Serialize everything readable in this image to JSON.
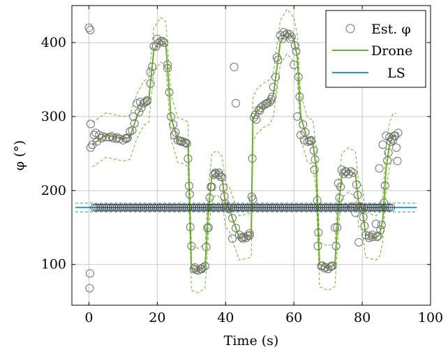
{
  "chart_data": {
    "type": "line",
    "title": "",
    "xlabel": "Time (s)",
    "ylabel": "φ (°)",
    "xlim": [
      -5,
      100
    ],
    "ylim": [
      45,
      450
    ],
    "xticks": [
      0,
      20,
      40,
      60,
      80,
      100
    ],
    "yticks": [
      100,
      200,
      300,
      400
    ],
    "xtick_labels": [
      "0",
      "20",
      "40",
      "60",
      "80",
      "100"
    ],
    "ytick_labels": [
      "100",
      "200",
      "300",
      "400"
    ],
    "grid": true,
    "legend_position": "top-right",
    "colors": {
      "drone": "#6db320",
      "ls": "#1f9ad6",
      "estimate": "#707070"
    },
    "series": [
      {
        "name": "Est. φ",
        "kind": "scatter",
        "x": [
          0,
          0.4,
          0.5,
          0.3,
          0.2,
          0.5,
          1,
          1.5,
          2,
          3,
          4,
          5,
          6,
          7,
          8,
          9,
          10,
          11,
          12,
          13,
          14,
          15,
          16,
          17,
          18,
          19,
          20,
          21,
          22,
          23,
          24,
          25,
          26,
          27,
          28,
          29,
          29.5,
          30,
          31,
          32,
          33,
          34,
          35,
          36,
          37,
          38,
          39,
          40,
          41,
          42,
          42.5,
          43,
          44,
          45,
          46,
          47,
          48,
          49,
          50,
          51,
          52,
          53,
          54,
          55,
          56,
          57,
          58,
          59,
          60,
          61,
          62,
          63,
          64,
          65,
          66,
          67,
          68,
          69,
          70,
          71,
          72,
          73,
          74,
          75,
          76,
          77,
          78,
          79,
          80,
          81,
          82,
          83,
          84,
          85,
          86,
          87,
          88,
          89,
          90,
          90.5,
          90.3
        ],
        "y": [
          420,
          417,
          290,
          88,
          68,
          258,
          262,
          275,
          278,
          275,
          273,
          272,
          272,
          271,
          270,
          270,
          268,
          270,
          280,
          300,
          318,
          320,
          318,
          322,
          360,
          395,
          405,
          402,
          400,
          370,
          300,
          275,
          268,
          266,
          265,
          243,
          195,
          125,
          96,
          92,
          94,
          98,
          150,
          205,
          224,
          224,
          218,
          182,
          175,
          135,
          367,
          318,
          140,
          135,
          136,
          142,
          188,
          296,
          308,
          315,
          318,
          320,
          340,
          380,
          410,
          414,
          412,
          405,
          370,
          300,
          275,
          268,
          266,
          268,
          228,
          125,
          98,
          95,
          94,
          98,
          150,
          210,
          228,
          226,
          222,
          178,
          170,
          130,
          175,
          140,
          136,
          140,
          155,
          230,
          262,
          274,
          272,
          268,
          258,
          278,
          240
        ]
      },
      {
        "name": "Drone",
        "kind": "line",
        "x": [
          1,
          5,
          10,
          12,
          14,
          16,
          17.5,
          19,
          21,
          22.5,
          24,
          26,
          28,
          29,
          30,
          32,
          34,
          35,
          36,
          37.5,
          39,
          40,
          41,
          44,
          46,
          47.5,
          48,
          49,
          51,
          53,
          54,
          56,
          58,
          60,
          61,
          62,
          64,
          65.5,
          66.5,
          67.5,
          70,
          72,
          73,
          74,
          76,
          78,
          79,
          80,
          81,
          84,
          85,
          86,
          87,
          88,
          89,
          90
        ],
        "y": [
          262,
          275,
          270,
          272,
          300,
          318,
          322,
          390,
          404,
          398,
          300,
          268,
          266,
          262,
          95,
          92,
          98,
          175,
          220,
          224,
          216,
          180,
          176,
          136,
          138,
          140,
          295,
          306,
          315,
          320,
          330,
          400,
          415,
          404,
          380,
          300,
          268,
          266,
          230,
          100,
          95,
          100,
          175,
          220,
          228,
          222,
          180,
          176,
          140,
          136,
          140,
          160,
          230,
          262,
          274,
          274
        ]
      },
      {
        "name": "LS",
        "kind": "line",
        "x": [
          -4,
          96
        ],
        "y": [
          177,
          177
        ],
        "band": [
          171,
          183
        ]
      }
    ],
    "drone_band_halfwidth": 30
  }
}
